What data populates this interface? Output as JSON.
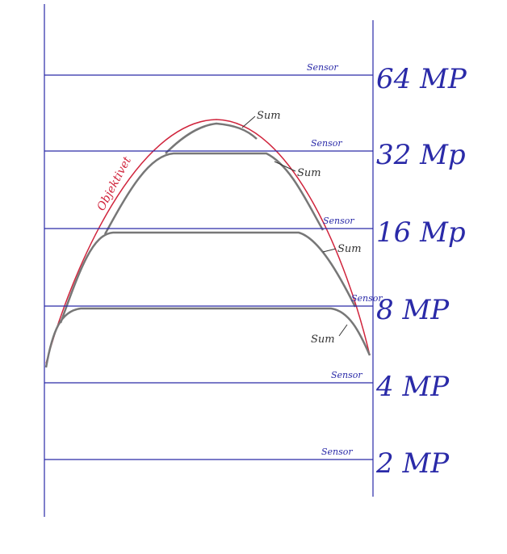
{
  "sensors": [
    {
      "tag": "Sensor",
      "label": "64 MP"
    },
    {
      "tag": "Sensor",
      "label": "32 Mp"
    },
    {
      "tag": "Sensor",
      "label": "16 Mp"
    },
    {
      "tag": "Sensor",
      "label": "8 MP"
    },
    {
      "tag": "Sensor",
      "label": "4 MP"
    },
    {
      "tag": "Sensor",
      "label": "2 MP"
    }
  ],
  "curves": {
    "lens": "Objektivet",
    "sums": [
      "Sum",
      "Sum",
      "Sum",
      "Sum"
    ]
  }
}
